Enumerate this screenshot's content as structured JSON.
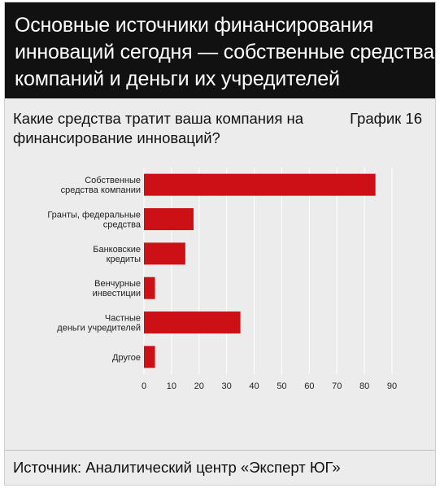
{
  "header": {
    "title_lines": [
      "Основные источники финансирования",
      "инноваций сегодня — собственные средства",
      "компаний и деньги их учредителей"
    ]
  },
  "question": "Какие средства тратит ваша компания на финансирование инноваций?",
  "graph_label": "График 16",
  "source": "Источник: Аналитический центр «Эксперт ЮГ»",
  "colors": {
    "bar": "#cc1016",
    "header_bg": "#111111",
    "panel_bg": "#ececec",
    "grid": "#ffffff"
  },
  "chart_data": {
    "type": "bar",
    "orientation": "horizontal",
    "categories": [
      [
        "Собственные",
        "средства компании"
      ],
      [
        "Гранты, федеральные",
        "средства"
      ],
      [
        "Банковские",
        "кредиты"
      ],
      [
        "Венчурные",
        "инвестиции"
      ],
      [
        "Частные",
        "деньги учредителей"
      ],
      [
        "Другое"
      ]
    ],
    "values": [
      84,
      18,
      15,
      4,
      35,
      4
    ],
    "xlim": [
      0,
      90
    ],
    "xticks": [
      0,
      10,
      20,
      30,
      40,
      50,
      60,
      70,
      80,
      90
    ],
    "grid": true,
    "title": "",
    "xlabel": "",
    "ylabel": ""
  }
}
